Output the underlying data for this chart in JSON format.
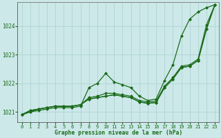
{
  "title": "Graphe pression niveau de la mer (hPa)",
  "background_color": "#cce8e8",
  "grid_color": "#aad0d0",
  "line_color": "#1a6b1a",
  "xlim": [
    -0.5,
    23.5
  ],
  "ylim": [
    1020.65,
    1024.85
  ],
  "yticks": [
    1021,
    1022,
    1023,
    1024
  ],
  "xticks": [
    0,
    1,
    2,
    3,
    4,
    5,
    6,
    7,
    8,
    9,
    10,
    11,
    12,
    13,
    14,
    15,
    16,
    17,
    18,
    19,
    20,
    21,
    22,
    23
  ],
  "series": [
    [
      1020.9,
      1021.0,
      1021.05,
      1021.1,
      1021.15,
      1021.15,
      1021.15,
      1021.2,
      1021.85,
      1022.0,
      1022.35,
      1022.05,
      1021.95,
      1021.85,
      1021.55,
      1021.4,
      1021.45,
      1022.1,
      1022.65,
      1023.65,
      1024.25,
      1024.5,
      1024.65,
      1024.75
    ],
    [
      1020.9,
      1021.0,
      1021.1,
      1021.15,
      1021.2,
      1021.2,
      1021.2,
      1021.25,
      1021.5,
      1021.55,
      1021.65,
      1021.65,
      1021.6,
      1021.55,
      1021.4,
      1021.35,
      1021.38,
      1021.9,
      1022.2,
      1022.6,
      1022.65,
      1022.85,
      1024.05,
      1024.75
    ],
    [
      1020.9,
      1021.05,
      1021.1,
      1021.15,
      1021.2,
      1021.2,
      1021.2,
      1021.25,
      1021.45,
      1021.5,
      1021.55,
      1021.6,
      1021.55,
      1021.5,
      1021.35,
      1021.3,
      1021.33,
      1021.85,
      1022.15,
      1022.55,
      1022.6,
      1022.8,
      1023.9,
      1024.75
    ],
    [
      1020.9,
      1021.05,
      1021.1,
      1021.15,
      1021.2,
      1021.2,
      1021.2,
      1021.25,
      1021.45,
      1021.5,
      1021.55,
      1021.6,
      1021.55,
      1021.5,
      1021.35,
      1021.3,
      1021.33,
      1021.85,
      1022.15,
      1022.55,
      1022.6,
      1022.8,
      1023.9,
      1024.75
    ]
  ],
  "marker": "D",
  "markersize": 2.0,
  "linewidth": 0.9,
  "title_fontsize": 5.8,
  "tick_fontsize": 5.0
}
